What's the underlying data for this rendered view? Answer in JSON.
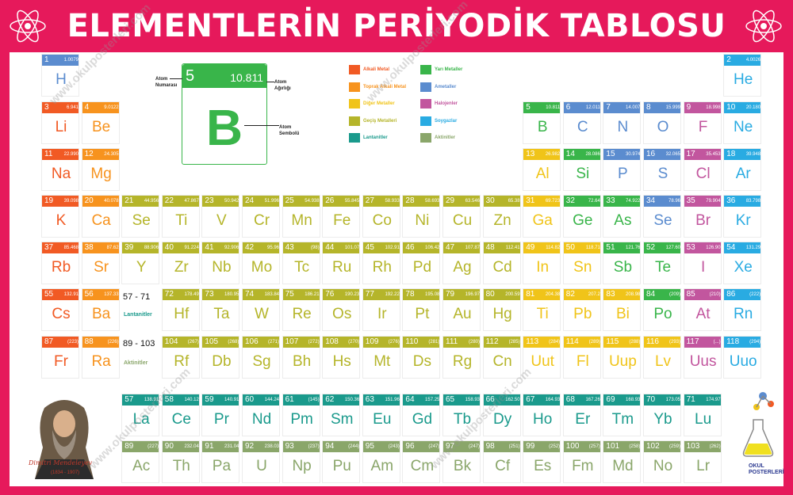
{
  "title": "ELEMENTLERİN PERİYODİK TABLOSU",
  "colors": {
    "frame": "#e6195b",
    "alkali": "#f15a24",
    "alkaline": "#f7931e",
    "transition": "#b5b52a",
    "basicmetal": "#f0c419",
    "metalloid": "#39b54a",
    "nonmetal": "#5b8ccf",
    "halogen": "#c2569e",
    "noble": "#29abe2",
    "lanthanide": "#1a9a8c",
    "actinide": "#8aa66a"
  },
  "legend_element": {
    "number": "5",
    "mass": "10.811",
    "symbol": "B",
    "label_number": "Atom Numarası",
    "label_mass": "Atom Ağırlığı",
    "label_symbol": "Atom Sembolü"
  },
  "categories": [
    {
      "label": "Alkali Metal",
      "color": "#f15a24"
    },
    {
      "label": "Toprak Alkali Metal",
      "color": "#f7931e"
    },
    {
      "label": "Diğer Metaller",
      "color": "#f0c419"
    },
    {
      "label": "Geçiş Metalleri",
      "color": "#b5b52a"
    },
    {
      "label": "Lantanitler",
      "color": "#1a9a8c"
    },
    {
      "label": "Yarı Metaller",
      "color": "#39b54a"
    },
    {
      "label": "Ametaller",
      "color": "#5b8ccf"
    },
    {
      "label": "Halojenler",
      "color": "#c2569e"
    },
    {
      "label": "Soygazlar",
      "color": "#29abe2"
    },
    {
      "label": "Aktinitler",
      "color": "#8aa66a"
    }
  ],
  "lanthanide_range": "57 - 71",
  "lanthanide_label": "Lantanitler",
  "actinide_range": "89 - 103",
  "actinide_label": "Aktinitler",
  "signature": "Dimitri Mendeleyev",
  "signature_years": "(1834 - 1907)",
  "logo": "OKUL POSTERLERİ",
  "watermark": "www.okulposterleri.com",
  "elements": [
    {
      "n": "1",
      "s": "H",
      "m": "1.0079",
      "r": 1,
      "c": 1,
      "t": "nonmetal"
    },
    {
      "n": "2",
      "s": "He",
      "m": "4.0026",
      "r": 1,
      "c": 18,
      "t": "noble"
    },
    {
      "n": "3",
      "s": "Li",
      "m": "6.941",
      "r": 2,
      "c": 1,
      "t": "alkali"
    },
    {
      "n": "4",
      "s": "Be",
      "m": "9.0122",
      "r": 2,
      "c": 2,
      "t": "alkaline"
    },
    {
      "n": "5",
      "s": "B",
      "m": "10.811",
      "r": 2,
      "c": 13,
      "t": "metalloid"
    },
    {
      "n": "6",
      "s": "C",
      "m": "12.011",
      "r": 2,
      "c": 14,
      "t": "nonmetal"
    },
    {
      "n": "7",
      "s": "N",
      "m": "14.007",
      "r": 2,
      "c": 15,
      "t": "nonmetal"
    },
    {
      "n": "8",
      "s": "O",
      "m": "15.999",
      "r": 2,
      "c": 16,
      "t": "nonmetal"
    },
    {
      "n": "9",
      "s": "F",
      "m": "18.998",
      "r": 2,
      "c": 17,
      "t": "halogen"
    },
    {
      "n": "10",
      "s": "Ne",
      "m": "20.180",
      "r": 2,
      "c": 18,
      "t": "noble"
    },
    {
      "n": "11",
      "s": "Na",
      "m": "22.990",
      "r": 3,
      "c": 1,
      "t": "alkali"
    },
    {
      "n": "12",
      "s": "Mg",
      "m": "24.305",
      "r": 3,
      "c": 2,
      "t": "alkaline"
    },
    {
      "n": "13",
      "s": "Al",
      "m": "26.982",
      "r": 3,
      "c": 13,
      "t": "basicmetal"
    },
    {
      "n": "14",
      "s": "Si",
      "m": "28.086",
      "r": 3,
      "c": 14,
      "t": "metalloid"
    },
    {
      "n": "15",
      "s": "P",
      "m": "30.974",
      "r": 3,
      "c": 15,
      "t": "nonmetal"
    },
    {
      "n": "16",
      "s": "S",
      "m": "32.065",
      "r": 3,
      "c": 16,
      "t": "nonmetal"
    },
    {
      "n": "17",
      "s": "Cl",
      "m": "35.453",
      "r": 3,
      "c": 17,
      "t": "halogen"
    },
    {
      "n": "18",
      "s": "Ar",
      "m": "39.948",
      "r": 3,
      "c": 18,
      "t": "noble"
    },
    {
      "n": "19",
      "s": "K",
      "m": "39.098",
      "r": 4,
      "c": 1,
      "t": "alkali"
    },
    {
      "n": "20",
      "s": "Ca",
      "m": "40.078",
      "r": 4,
      "c": 2,
      "t": "alkaline"
    },
    {
      "n": "21",
      "s": "Se",
      "m": "44.956",
      "r": 4,
      "c": 3,
      "t": "transition"
    },
    {
      "n": "22",
      "s": "Ti",
      "m": "47.867",
      "r": 4,
      "c": 4,
      "t": "transition"
    },
    {
      "n": "23",
      "s": "V",
      "m": "50.942",
      "r": 4,
      "c": 5,
      "t": "transition"
    },
    {
      "n": "24",
      "s": "Cr",
      "m": "51.996",
      "r": 4,
      "c": 6,
      "t": "transition"
    },
    {
      "n": "25",
      "s": "Mn",
      "m": "54.938",
      "r": 4,
      "c": 7,
      "t": "transition"
    },
    {
      "n": "26",
      "s": "Fe",
      "m": "55.845",
      "r": 4,
      "c": 8,
      "t": "transition"
    },
    {
      "n": "27",
      "s": "Co",
      "m": "58.933",
      "r": 4,
      "c": 9,
      "t": "transition"
    },
    {
      "n": "28",
      "s": "Ni",
      "m": "58.693",
      "r": 4,
      "c": 10,
      "t": "transition"
    },
    {
      "n": "29",
      "s": "Cu",
      "m": "63.546",
      "r": 4,
      "c": 11,
      "t": "transition"
    },
    {
      "n": "30",
      "s": "Zn",
      "m": "65.38",
      "r": 4,
      "c": 12,
      "t": "transition"
    },
    {
      "n": "31",
      "s": "Ga",
      "m": "69.723",
      "r": 4,
      "c": 13,
      "t": "basicmetal"
    },
    {
      "n": "32",
      "s": "Ge",
      "m": "72.64",
      "r": 4,
      "c": 14,
      "t": "metalloid"
    },
    {
      "n": "33",
      "s": "As",
      "m": "74.922",
      "r": 4,
      "c": 15,
      "t": "metalloid"
    },
    {
      "n": "34",
      "s": "Se",
      "m": "78.96",
      "r": 4,
      "c": 16,
      "t": "nonmetal"
    },
    {
      "n": "35",
      "s": "Br",
      "m": "79.904",
      "r": 4,
      "c": 17,
      "t": "halogen"
    },
    {
      "n": "36",
      "s": "Kr",
      "m": "83.798",
      "r": 4,
      "c": 18,
      "t": "noble"
    },
    {
      "n": "37",
      "s": "Rb",
      "m": "85.468",
      "r": 5,
      "c": 1,
      "t": "alkali"
    },
    {
      "n": "38",
      "s": "Sr",
      "m": "87.62",
      "r": 5,
      "c": 2,
      "t": "alkaline"
    },
    {
      "n": "39",
      "s": "Y",
      "m": "88.906",
      "r": 5,
      "c": 3,
      "t": "transition"
    },
    {
      "n": "40",
      "s": "Zr",
      "m": "91.224",
      "r": 5,
      "c": 4,
      "t": "transition"
    },
    {
      "n": "41",
      "s": "Nb",
      "m": "92.906",
      "r": 5,
      "c": 5,
      "t": "transition"
    },
    {
      "n": "42",
      "s": "Mo",
      "m": "95.96",
      "r": 5,
      "c": 6,
      "t": "transition"
    },
    {
      "n": "43",
      "s": "Tc",
      "m": "(98)",
      "r": 5,
      "c": 7,
      "t": "transition"
    },
    {
      "n": "44",
      "s": "Ru",
      "m": "101.07",
      "r": 5,
      "c": 8,
      "t": "transition"
    },
    {
      "n": "45",
      "s": "Rh",
      "m": "102.91",
      "r": 5,
      "c": 9,
      "t": "transition"
    },
    {
      "n": "46",
      "s": "Pd",
      "m": "106.42",
      "r": 5,
      "c": 10,
      "t": "transition"
    },
    {
      "n": "47",
      "s": "Ag",
      "m": "107.87",
      "r": 5,
      "c": 11,
      "t": "transition"
    },
    {
      "n": "48",
      "s": "Cd",
      "m": "112.41",
      "r": 5,
      "c": 12,
      "t": "transition"
    },
    {
      "n": "49",
      "s": "In",
      "m": "114.82",
      "r": 5,
      "c": 13,
      "t": "basicmetal"
    },
    {
      "n": "50",
      "s": "Sn",
      "m": "118.71",
      "r": 5,
      "c": 14,
      "t": "basicmetal"
    },
    {
      "n": "51",
      "s": "Sb",
      "m": "121.76",
      "r": 5,
      "c": 15,
      "t": "metalloid"
    },
    {
      "n": "52",
      "s": "Te",
      "m": "127.60",
      "r": 5,
      "c": 16,
      "t": "metalloid"
    },
    {
      "n": "53",
      "s": "I",
      "m": "126.90",
      "r": 5,
      "c": 17,
      "t": "halogen"
    },
    {
      "n": "54",
      "s": "Xe",
      "m": "131.29",
      "r": 5,
      "c": 18,
      "t": "noble"
    },
    {
      "n": "55",
      "s": "Cs",
      "m": "132.91",
      "r": 6,
      "c": 1,
      "t": "alkali"
    },
    {
      "n": "56",
      "s": "Ba",
      "m": "137.33",
      "r": 6,
      "c": 2,
      "t": "alkaline"
    },
    {
      "n": "72",
      "s": "Hf",
      "m": "178.49",
      "r": 6,
      "c": 4,
      "t": "transition"
    },
    {
      "n": "73",
      "s": "Ta",
      "m": "180.95",
      "r": 6,
      "c": 5,
      "t": "transition"
    },
    {
      "n": "74",
      "s": "W",
      "m": "183.84",
      "r": 6,
      "c": 6,
      "t": "transition"
    },
    {
      "n": "75",
      "s": "Re",
      "m": "186.21",
      "r": 6,
      "c": 7,
      "t": "transition"
    },
    {
      "n": "76",
      "s": "Os",
      "m": "190.23",
      "r": 6,
      "c": 8,
      "t": "transition"
    },
    {
      "n": "77",
      "s": "Ir",
      "m": "192.22",
      "r": 6,
      "c": 9,
      "t": "transition"
    },
    {
      "n": "78",
      "s": "Pt",
      "m": "195.08",
      "r": 6,
      "c": 10,
      "t": "transition"
    },
    {
      "n": "79",
      "s": "Au",
      "m": "196.97",
      "r": 6,
      "c": 11,
      "t": "transition"
    },
    {
      "n": "80",
      "s": "Hg",
      "m": "200.59",
      "r": 6,
      "c": 12,
      "t": "transition"
    },
    {
      "n": "81",
      "s": "Ti",
      "m": "204.38",
      "r": 6,
      "c": 13,
      "t": "basicmetal"
    },
    {
      "n": "82",
      "s": "Pb",
      "m": "207.2",
      "r": 6,
      "c": 14,
      "t": "basicmetal"
    },
    {
      "n": "83",
      "s": "Bi",
      "m": "208.98",
      "r": 6,
      "c": 15,
      "t": "basicmetal"
    },
    {
      "n": "84",
      "s": "Po",
      "m": "(209)",
      "r": 6,
      "c": 16,
      "t": "metalloid"
    },
    {
      "n": "85",
      "s": "At",
      "m": "(210)",
      "r": 6,
      "c": 17,
      "t": "halogen"
    },
    {
      "n": "86",
      "s": "Rn",
      "m": "(222)",
      "r": 6,
      "c": 18,
      "t": "noble"
    },
    {
      "n": "87",
      "s": "Fr",
      "m": "(223)",
      "r": 7,
      "c": 1,
      "t": "alkali"
    },
    {
      "n": "88",
      "s": "Ra",
      "m": "(226)",
      "r": 7,
      "c": 2,
      "t": "alkaline"
    },
    {
      "n": "104",
      "s": "Rf",
      "m": "(267)",
      "r": 7,
      "c": 4,
      "t": "transition"
    },
    {
      "n": "105",
      "s": "Db",
      "m": "(268)",
      "r": 7,
      "c": 5,
      "t": "transition"
    },
    {
      "n": "106",
      "s": "Sg",
      "m": "(271)",
      "r": 7,
      "c": 6,
      "t": "transition"
    },
    {
      "n": "107",
      "s": "Bh",
      "m": "(272)",
      "r": 7,
      "c": 7,
      "t": "transition"
    },
    {
      "n": "108",
      "s": "Hs",
      "m": "(270)",
      "r": 7,
      "c": 8,
      "t": "transition"
    },
    {
      "n": "109",
      "s": "Mt",
      "m": "(276)",
      "r": 7,
      "c": 9,
      "t": "transition"
    },
    {
      "n": "110",
      "s": "Ds",
      "m": "(281)",
      "r": 7,
      "c": 10,
      "t": "transition"
    },
    {
      "n": "111",
      "s": "Rg",
      "m": "(280)",
      "r": 7,
      "c": 11,
      "t": "transition"
    },
    {
      "n": "112",
      "s": "Cn",
      "m": "(285)",
      "r": 7,
      "c": 12,
      "t": "transition"
    },
    {
      "n": "113",
      "s": "Uut",
      "m": "(284)",
      "r": 7,
      "c": 13,
      "t": "basicmetal"
    },
    {
      "n": "114",
      "s": "Fl",
      "m": "(289)",
      "r": 7,
      "c": 14,
      "t": "basicmetal"
    },
    {
      "n": "115",
      "s": "Uup",
      "m": "(288)",
      "r": 7,
      "c": 15,
      "t": "basicmetal"
    },
    {
      "n": "116",
      "s": "Lv",
      "m": "(293)",
      "r": 7,
      "c": 16,
      "t": "basicmetal"
    },
    {
      "n": "117",
      "s": "Uus",
      "m": "(...)",
      "r": 7,
      "c": 17,
      "t": "halogen"
    },
    {
      "n": "118",
      "s": "Uuo",
      "m": "(294)",
      "r": 7,
      "c": 18,
      "t": "noble"
    },
    {
      "n": "57",
      "s": "La",
      "m": "138.91",
      "r": 9,
      "c": 3,
      "t": "lanthanide"
    },
    {
      "n": "58",
      "s": "Ce",
      "m": "140.12",
      "r": 9,
      "c": 4,
      "t": "lanthanide"
    },
    {
      "n": "59",
      "s": "Pr",
      "m": "140.91",
      "r": 9,
      "c": 5,
      "t": "lanthanide"
    },
    {
      "n": "60",
      "s": "Nd",
      "m": "144.24",
      "r": 9,
      "c": 6,
      "t": "lanthanide"
    },
    {
      "n": "61",
      "s": "Pm",
      "m": "(145)",
      "r": 9,
      "c": 7,
      "t": "lanthanide"
    },
    {
      "n": "62",
      "s": "Sm",
      "m": "150.36",
      "r": 9,
      "c": 8,
      "t": "lanthanide"
    },
    {
      "n": "63",
      "s": "Eu",
      "m": "151.96",
      "r": 9,
      "c": 9,
      "t": "lanthanide"
    },
    {
      "n": "64",
      "s": "Gd",
      "m": "157.25",
      "r": 9,
      "c": 10,
      "t": "lanthanide"
    },
    {
      "n": "65",
      "s": "Tb",
      "m": "158.93",
      "r": 9,
      "c": 11,
      "t": "lanthanide"
    },
    {
      "n": "66",
      "s": "Dy",
      "m": "162.50",
      "r": 9,
      "c": 12,
      "t": "lanthanide"
    },
    {
      "n": "67",
      "s": "Ho",
      "m": "164.93",
      "r": 9,
      "c": 13,
      "t": "lanthanide"
    },
    {
      "n": "68",
      "s": "Er",
      "m": "167.26",
      "r": 9,
      "c": 14,
      "t": "lanthanide"
    },
    {
      "n": "69",
      "s": "Tm",
      "m": "168.93",
      "r": 9,
      "c": 15,
      "t": "lanthanide"
    },
    {
      "n": "70",
      "s": "Yb",
      "m": "173.05",
      "r": 9,
      "c": 16,
      "t": "lanthanide"
    },
    {
      "n": "71",
      "s": "Lu",
      "m": "174.97",
      "r": 9,
      "c": 17,
      "t": "lanthanide"
    },
    {
      "n": "89",
      "s": "Ac",
      "m": "(227)",
      "r": 10,
      "c": 3,
      "t": "actinide"
    },
    {
      "n": "90",
      "s": "Th",
      "m": "232.04",
      "r": 10,
      "c": 4,
      "t": "actinide"
    },
    {
      "n": "91",
      "s": "Pa",
      "m": "231.04",
      "r": 10,
      "c": 5,
      "t": "actinide"
    },
    {
      "n": "92",
      "s": "U",
      "m": "238.03",
      "r": 10,
      "c": 6,
      "t": "actinide"
    },
    {
      "n": "93",
      "s": "Np",
      "m": "(237)",
      "r": 10,
      "c": 7,
      "t": "actinide"
    },
    {
      "n": "94",
      "s": "Pu",
      "m": "(244)",
      "r": 10,
      "c": 8,
      "t": "actinide"
    },
    {
      "n": "95",
      "s": "Am",
      "m": "(243)",
      "r": 10,
      "c": 9,
      "t": "actinide"
    },
    {
      "n": "96",
      "s": "Cm",
      "m": "(247)",
      "r": 10,
      "c": 10,
      "t": "actinide"
    },
    {
      "n": "97",
      "s": "Bk",
      "m": "(247)",
      "r": 10,
      "c": 11,
      "t": "actinide"
    },
    {
      "n": "98",
      "s": "Cf",
      "m": "(251)",
      "r": 10,
      "c": 12,
      "t": "actinide"
    },
    {
      "n": "99",
      "s": "Es",
      "m": "(252)",
      "r": 10,
      "c": 13,
      "t": "actinide"
    },
    {
      "n": "100",
      "s": "Fm",
      "m": "(257)",
      "r": 10,
      "c": 14,
      "t": "actinide"
    },
    {
      "n": "101",
      "s": "Md",
      "m": "(258)",
      "r": 10,
      "c": 15,
      "t": "actinide"
    },
    {
      "n": "102",
      "s": "No",
      "m": "(259)",
      "r": 10,
      "c": 16,
      "t": "actinide"
    },
    {
      "n": "103",
      "s": "Lr",
      "m": "(262)",
      "r": 10,
      "c": 17,
      "t": "actinide"
    }
  ]
}
